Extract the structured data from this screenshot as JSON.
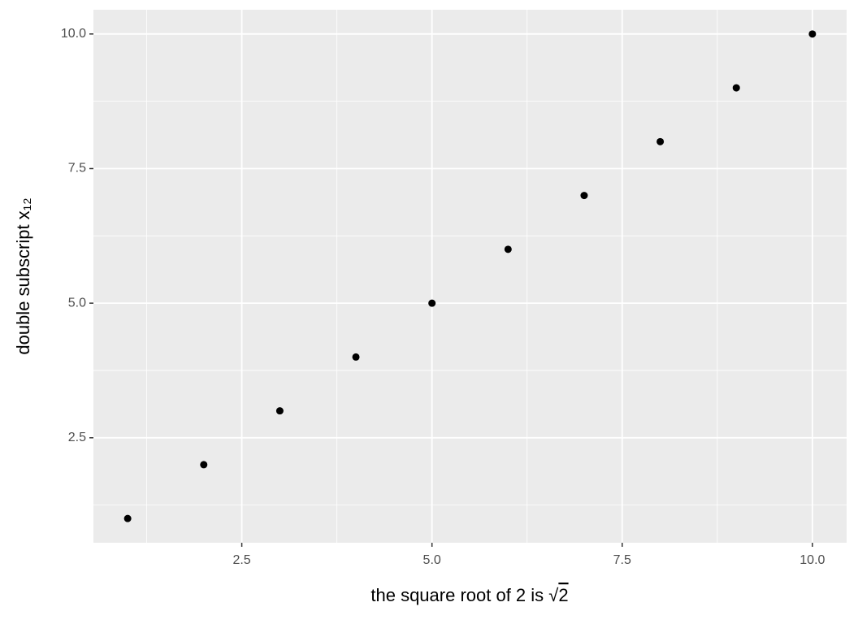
{
  "chart_data": {
    "type": "scatter",
    "xlabel": "the square root of 2 is √2",
    "ylabel": "double subscript x₁₂",
    "x": [
      1,
      2,
      3,
      4,
      5,
      6,
      7,
      8,
      9,
      10
    ],
    "values": [
      1,
      2,
      3,
      4,
      5,
      6,
      7,
      8,
      9,
      10
    ],
    "color": "#000000",
    "xlim": [
      0.55,
      10.45
    ],
    "ylim": [
      0.55,
      10.45
    ],
    "xticks": [
      {
        "value": 2.5,
        "label": "2.5"
      },
      {
        "value": 5,
        "label": "5.0"
      },
      {
        "value": 7.5,
        "label": "7.5"
      },
      {
        "value": 10,
        "label": "10.0"
      }
    ],
    "yticks": [
      {
        "value": 2.5,
        "label": "2.5"
      },
      {
        "value": 5,
        "label": "5.0"
      },
      {
        "value": 7.5,
        "label": "7.5"
      },
      {
        "value": 10,
        "label": "10.0"
      }
    ],
    "xminor": [
      1.25,
      3.75,
      6.25,
      8.75
    ],
    "yminor": [
      1.25,
      3.75,
      6.25,
      8.75
    ],
    "grid": true
  }
}
